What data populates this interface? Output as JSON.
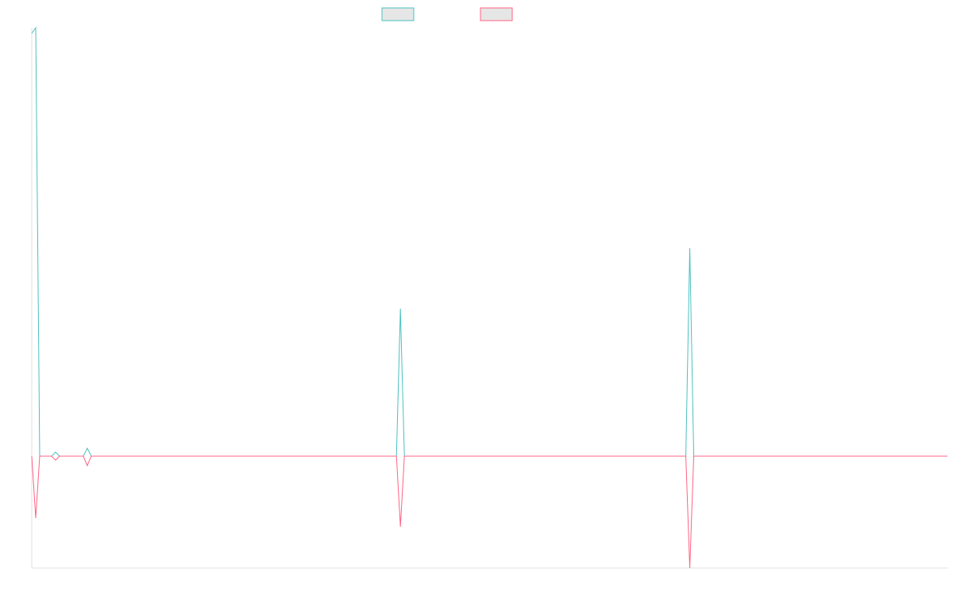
{
  "chart_data": {
    "type": "line",
    "x": [
      0,
      1,
      2,
      5,
      6,
      7,
      13,
      14,
      15,
      92,
      93,
      94,
      165,
      166,
      167,
      231
    ],
    "xlim": [
      0,
      231
    ],
    "ylim": [
      -141,
      540
    ],
    "series": [
      {
        "color": "#4bc0c0",
        "values": [
          533,
          540,
          0,
          0,
          5,
          0,
          0,
          10,
          0,
          0,
          186,
          0,
          0,
          262,
          0,
          0
        ]
      },
      {
        "color": "#ff6384",
        "values": [
          0,
          -78,
          0,
          0,
          -5,
          0,
          0,
          -12,
          0,
          0,
          -89,
          0,
          0,
          -141,
          0,
          0
        ]
      }
    ]
  }
}
